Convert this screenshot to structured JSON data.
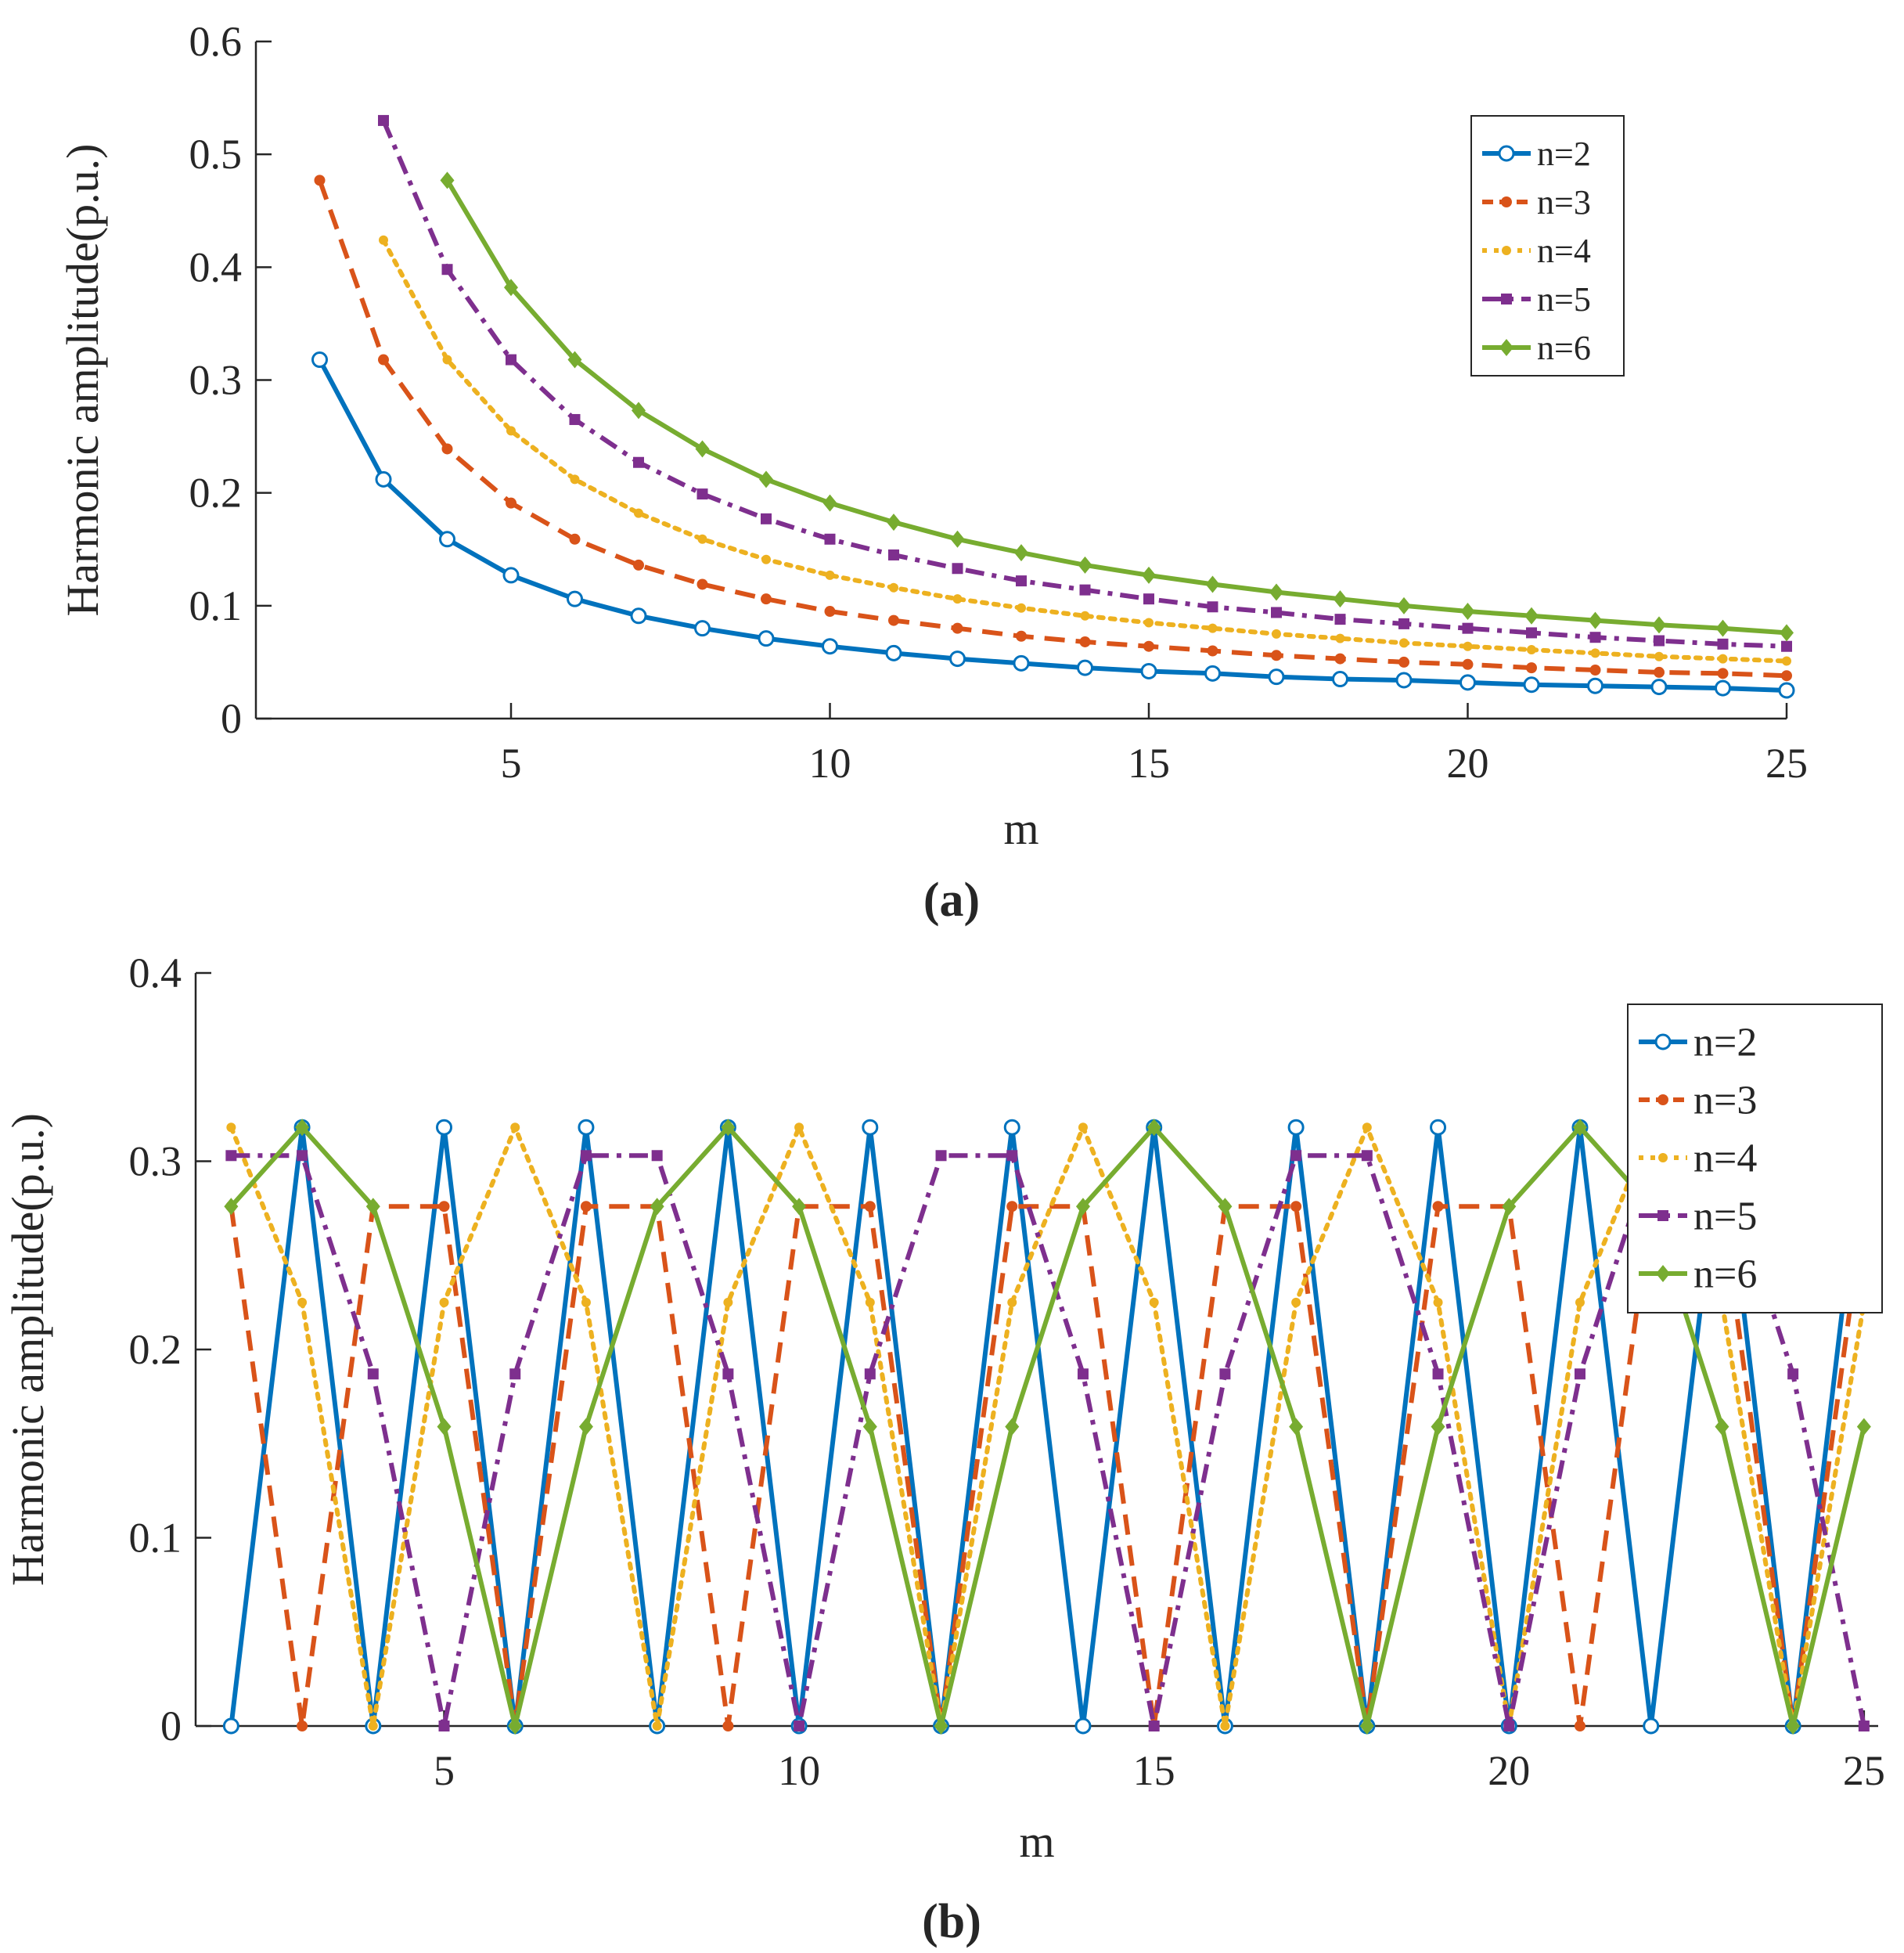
{
  "figure": {
    "panel_labels": [
      "(a)",
      "(b)"
    ],
    "styles": {
      "n=2": {
        "color": "#0072BD",
        "dash": "",
        "marker": "circle"
      },
      "n=3": {
        "color": "#D95319",
        "dash": "dashed",
        "marker": "dot"
      },
      "n=4": {
        "color": "#EDB120",
        "dash": "dotted",
        "marker": "star"
      },
      "n=5": {
        "color": "#7E2F8E",
        "dash": "dashdot",
        "marker": "square"
      },
      "n=6": {
        "color": "#77AC30",
        "dash": "",
        "marker": "diamond"
      }
    }
  },
  "chart_data": [
    {
      "type": "line",
      "panel": "(a)",
      "title": "",
      "xlabel": "m",
      "ylabel": "Harmonic amplitude(p.u.)",
      "xlim": [
        1.0,
        25
      ],
      "ylim": [
        0,
        0.6
      ],
      "xticks": [
        5,
        10,
        15,
        20,
        25
      ],
      "yticks": [
        0,
        0.1,
        0.2,
        0.3,
        0.4,
        0.5,
        0.6
      ],
      "ytick_labels": [
        "0",
        "0.1",
        "0.2",
        "0.3",
        "0.4",
        "0.5",
        "0.6"
      ],
      "legend_position": "top-right",
      "series": [
        {
          "name": "n=2",
          "x": [
            2,
            3,
            4,
            5,
            6,
            7,
            8,
            9,
            10,
            11,
            12,
            13,
            14,
            15,
            16,
            17,
            18,
            19,
            20,
            21,
            22,
            23,
            24,
            25
          ],
          "values": [
            0.318,
            0.212,
            0.159,
            0.127,
            0.106,
            0.091,
            0.08,
            0.071,
            0.064,
            0.058,
            0.053,
            0.049,
            0.045,
            0.042,
            0.04,
            0.037,
            0.035,
            0.034,
            0.032,
            0.03,
            0.029,
            0.028,
            0.027,
            0.025
          ]
        },
        {
          "name": "n=3",
          "x": [
            2,
            3,
            4,
            5,
            6,
            7,
            8,
            9,
            10,
            11,
            12,
            13,
            14,
            15,
            16,
            17,
            18,
            19,
            20,
            21,
            22,
            23,
            24,
            25
          ],
          "values": [
            0.477,
            0.318,
            0.239,
            0.191,
            0.159,
            0.136,
            0.119,
            0.106,
            0.095,
            0.087,
            0.08,
            0.073,
            0.068,
            0.064,
            0.06,
            0.056,
            0.053,
            0.05,
            0.048,
            0.045,
            0.043,
            0.041,
            0.04,
            0.038
          ]
        },
        {
          "name": "n=4",
          "x": [
            3,
            4,
            5,
            6,
            7,
            8,
            9,
            10,
            11,
            12,
            13,
            14,
            15,
            16,
            17,
            18,
            19,
            20,
            21,
            22,
            23,
            24,
            25
          ],
          "values": [
            0.424,
            0.318,
            0.255,
            0.212,
            0.182,
            0.159,
            0.141,
            0.127,
            0.116,
            0.106,
            0.098,
            0.091,
            0.085,
            0.08,
            0.075,
            0.071,
            0.067,
            0.064,
            0.061,
            0.058,
            0.055,
            0.053,
            0.051
          ]
        },
        {
          "name": "n=5",
          "x": [
            3,
            4,
            5,
            6,
            7,
            8,
            9,
            10,
            11,
            12,
            13,
            14,
            15,
            16,
            17,
            18,
            19,
            20,
            21,
            22,
            23,
            24,
            25
          ],
          "values": [
            0.53,
            0.398,
            0.318,
            0.265,
            0.227,
            0.199,
            0.177,
            0.159,
            0.145,
            0.133,
            0.122,
            0.114,
            0.106,
            0.099,
            0.094,
            0.088,
            0.084,
            0.08,
            0.076,
            0.072,
            0.069,
            0.066,
            0.064
          ]
        },
        {
          "name": "n=6",
          "x": [
            4,
            5,
            6,
            7,
            8,
            9,
            10,
            11,
            12,
            13,
            14,
            15,
            16,
            17,
            18,
            19,
            20,
            21,
            22,
            23,
            24,
            25
          ],
          "values": [
            0.477,
            0.382,
            0.318,
            0.273,
            0.239,
            0.212,
            0.191,
            0.174,
            0.159,
            0.147,
            0.136,
            0.127,
            0.119,
            0.112,
            0.106,
            0.1,
            0.095,
            0.091,
            0.087,
            0.083,
            0.08,
            0.076
          ]
        }
      ]
    },
    {
      "type": "line",
      "panel": "(b)",
      "title": "",
      "xlabel": "m",
      "ylabel": "Harmonic amplitude(p.u.)",
      "xlim": [
        1.5,
        25.2
      ],
      "ylim": [
        0,
        0.4
      ],
      "xticks": [
        5,
        10,
        15,
        20,
        25
      ],
      "yticks": [
        0,
        0.1,
        0.2,
        0.3,
        0.4
      ],
      "ytick_labels": [
        "0",
        "0.1",
        "0.2",
        "0.3",
        "0.4"
      ],
      "legend_position": "top-right",
      "series": [
        {
          "name": "n=2",
          "x": [
            2,
            3,
            4,
            5,
            6,
            7,
            8,
            9,
            10,
            11,
            12,
            13,
            14,
            15,
            16,
            17,
            18,
            19,
            20,
            21,
            22,
            23,
            24,
            25
          ],
          "values": [
            0,
            0.318,
            0,
            0.318,
            0,
            0.318,
            0,
            0.318,
            0,
            0.318,
            0,
            0.318,
            0,
            0.318,
            0,
            0.318,
            0,
            0.318,
            0,
            0.318,
            0,
            0.318,
            0,
            0.318
          ]
        },
        {
          "name": "n=3",
          "x": [
            2,
            3,
            4,
            5,
            6,
            7,
            8,
            9,
            10,
            11,
            12,
            13,
            14,
            15,
            16,
            17,
            18,
            19,
            20,
            21,
            22,
            23,
            24,
            25
          ],
          "values": [
            0.276,
            0,
            0.276,
            0.276,
            0,
            0.276,
            0.276,
            0,
            0.276,
            0.276,
            0,
            0.276,
            0.276,
            0,
            0.276,
            0.276,
            0,
            0.276,
            0.276,
            0,
            0.276,
            0.276,
            0,
            0.276
          ]
        },
        {
          "name": "n=4",
          "x": [
            2,
            3,
            4,
            5,
            6,
            7,
            8,
            9,
            10,
            11,
            12,
            13,
            14,
            15,
            16,
            17,
            18,
            19,
            20,
            21,
            22,
            23,
            24,
            25
          ],
          "values": [
            0.318,
            0.225,
            0,
            0.225,
            0.318,
            0.225,
            0,
            0.225,
            0.318,
            0.225,
            0,
            0.225,
            0.318,
            0.225,
            0,
            0.225,
            0.318,
            0.225,
            0,
            0.225,
            0.318,
            0.225,
            0,
            0.225
          ]
        },
        {
          "name": "n=5",
          "x": [
            2,
            3,
            4,
            5,
            6,
            7,
            8,
            9,
            10,
            11,
            12,
            13,
            14,
            15,
            16,
            17,
            18,
            19,
            20,
            21,
            22,
            23,
            24,
            25
          ],
          "values": [
            0.303,
            0.303,
            0.187,
            0,
            0.187,
            0.303,
            0.303,
            0.187,
            0,
            0.187,
            0.303,
            0.303,
            0.187,
            0,
            0.187,
            0.303,
            0.303,
            0.187,
            0,
            0.187,
            0.303,
            0.303,
            0.187,
            0
          ]
        },
        {
          "name": "n=6",
          "x": [
            2,
            3,
            4,
            5,
            6,
            7,
            8,
            9,
            10,
            11,
            12,
            13,
            14,
            15,
            16,
            17,
            18,
            19,
            20,
            21,
            22,
            23,
            24,
            25
          ],
          "values": [
            0.276,
            0.318,
            0.276,
            0.159,
            0,
            0.159,
            0.276,
            0.318,
            0.276,
            0.159,
            0,
            0.159,
            0.276,
            0.318,
            0.276,
            0.159,
            0,
            0.159,
            0.276,
            0.318,
            0.276,
            0.159,
            0,
            0.159
          ]
        }
      ]
    }
  ]
}
